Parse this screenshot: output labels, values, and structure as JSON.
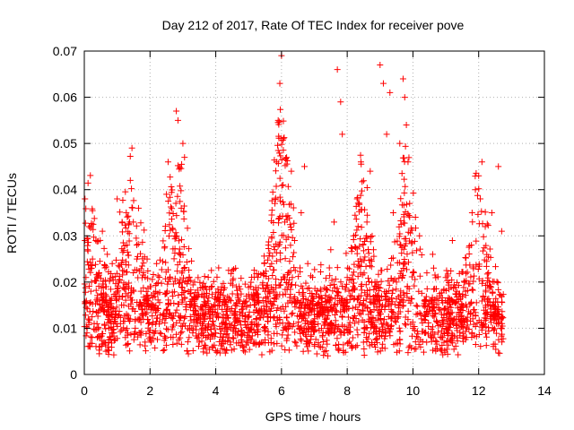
{
  "chart_data": {
    "type": "scatter",
    "title": "Day 212 of 2017, Rate Of TEC Index for receiver pove",
    "xlabel": "GPS time / hours",
    "ylabel": "ROTI / TECUs",
    "xlim": [
      0,
      14
    ],
    "ylim": [
      0,
      0.07
    ],
    "xticks": [
      0,
      2,
      4,
      6,
      8,
      10,
      12,
      14
    ],
    "yticks": [
      0,
      0.01,
      0.02,
      0.03,
      0.04,
      0.05,
      0.06,
      0.07
    ],
    "ytick_labels": [
      "0",
      "0.01",
      "0.02",
      "0.03",
      "0.04",
      "0.05",
      "0.06",
      "0.07"
    ],
    "grid": true,
    "marker": "plus",
    "color": "#ff0000",
    "series": [
      {
        "x": [
          0.02,
          0.05,
          0.08,
          0.1,
          0.12,
          0.15,
          0.18,
          0.2,
          0.25,
          0.3,
          0.35,
          0.4,
          0.45,
          0.5,
          0.55,
          0.6,
          0.65,
          0.7,
          0.75,
          0.8,
          0.85,
          0.9,
          0.95,
          1.0,
          1.05,
          1.1,
          1.15,
          1.2,
          1.25,
          1.3,
          1.35,
          1.4,
          1.45,
          1.5,
          1.55,
          1.6,
          1.65,
          1.7,
          1.75,
          1.8,
          1.85,
          1.9,
          1.95,
          2.0,
          2.1,
          2.2,
          2.3,
          2.4,
          2.5,
          2.55,
          2.6,
          2.7,
          2.75,
          2.8,
          2.85,
          2.9,
          2.95,
          3.0,
          3.05,
          3.1,
          3.2,
          3.3,
          3.4,
          3.5,
          3.6,
          3.7,
          3.8,
          3.9,
          4.0,
          4.2,
          4.4,
          4.6,
          4.8,
          5.0,
          5.2,
          5.4,
          5.5,
          5.6,
          5.7,
          5.8,
          5.85,
          5.9,
          5.95,
          6.0,
          6.05,
          6.1,
          6.2,
          6.3,
          6.4,
          6.5,
          6.6,
          6.7,
          6.8,
          7.0,
          7.2,
          7.4,
          7.5,
          7.6,
          7.7,
          7.8,
          7.85,
          7.9,
          8.0,
          8.2,
          8.3,
          8.4,
          8.5,
          8.6,
          8.7,
          8.8,
          8.9,
          9.0,
          9.1,
          9.2,
          9.3,
          9.4,
          9.5,
          9.6,
          9.7,
          9.75,
          9.8,
          9.85,
          9.9,
          10.0,
          10.2,
          10.4,
          10.6,
          10.8,
          11.0,
          11.2,
          11.4,
          11.6,
          11.8,
          11.9,
          12.0,
          12.05,
          12.1,
          12.2,
          12.3,
          12.4,
          12.5,
          12.6,
          12.7
        ],
        "y": [
          0.038,
          0.021,
          0.009,
          0.027,
          0.012,
          0.032,
          0.006,
          0.018,
          0.025,
          0.011,
          0.029,
          0.008,
          0.022,
          0.014,
          0.031,
          0.007,
          0.019,
          0.026,
          0.01,
          0.016,
          0.024,
          0.009,
          0.013,
          0.038,
          0.02,
          0.011,
          0.033,
          0.015,
          0.008,
          0.028,
          0.012,
          0.042,
          0.049,
          0.018,
          0.01,
          0.025,
          0.036,
          0.009,
          0.014,
          0.022,
          0.007,
          0.017,
          0.011,
          0.019,
          0.015,
          0.024,
          0.009,
          0.013,
          0.039,
          0.046,
          0.021,
          0.008,
          0.03,
          0.057,
          0.055,
          0.026,
          0.036,
          0.05,
          0.047,
          0.014,
          0.021,
          0.009,
          0.012,
          0.007,
          0.01,
          0.008,
          0.013,
          0.006,
          0.009,
          0.011,
          0.008,
          0.012,
          0.007,
          0.01,
          0.009,
          0.013,
          0.018,
          0.028,
          0.024,
          0.037,
          0.046,
          0.055,
          0.063,
          0.069,
          0.041,
          0.033,
          0.022,
          0.044,
          0.029,
          0.016,
          0.035,
          0.045,
          0.024,
          0.013,
          0.018,
          0.01,
          0.027,
          0.033,
          0.066,
          0.059,
          0.052,
          0.014,
          0.021,
          0.03,
          0.038,
          0.025,
          0.016,
          0.033,
          0.044,
          0.027,
          0.02,
          0.067,
          0.063,
          0.052,
          0.061,
          0.035,
          0.02,
          0.05,
          0.064,
          0.06,
          0.054,
          0.046,
          0.037,
          0.022,
          0.03,
          0.016,
          0.026,
          0.014,
          0.021,
          0.029,
          0.012,
          0.018,
          0.035,
          0.04,
          0.043,
          0.038,
          0.046,
          0.032,
          0.022,
          0.035,
          0.014,
          0.045,
          0.031
        ],
        "mark_count_hint": "dense"
      }
    ]
  }
}
